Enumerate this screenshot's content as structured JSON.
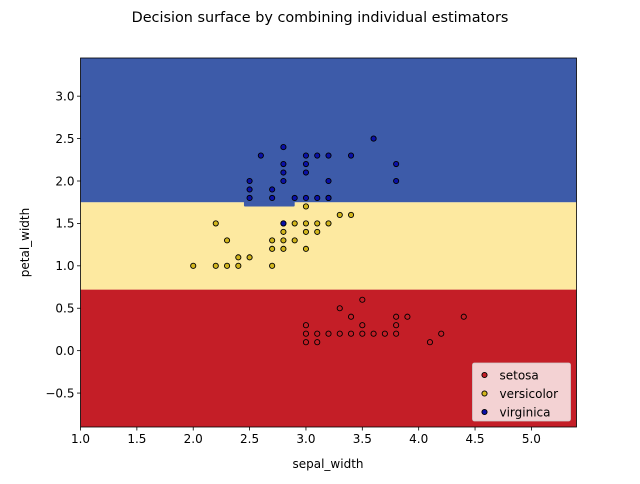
{
  "chart_data": {
    "type": "scatter",
    "title": "Decision surface by combining individual estimators",
    "xlabel": "sepal_width",
    "ylabel": "petal_width",
    "xlim": [
      1.0,
      5.4
    ],
    "ylim": [
      -0.9,
      3.45
    ],
    "xticks": [
      "1.0",
      "1.5",
      "2.0",
      "2.5",
      "3.0",
      "3.5",
      "4.0",
      "4.5",
      "5.0"
    ],
    "yticks": [
      "−0.5",
      "0.0",
      "0.5",
      "1.0",
      "1.5",
      "2.0",
      "2.5",
      "3.0"
    ],
    "grid": false,
    "legend_position": "lower-right",
    "regions": [
      {
        "class": "setosa",
        "color": "#c41e27",
        "y_range": [
          -0.9,
          0.72
        ]
      },
      {
        "class": "versicolor",
        "color": "#fde9a0",
        "y_range": [
          0.72,
          1.75
        ]
      },
      {
        "class": "virginica",
        "color": "#3d5ba9",
        "y_range": [
          1.75,
          3.45
        ],
        "notch": {
          "x_range": [
            2.45,
            2.9
          ],
          "y_min": 1.7
        }
      }
    ],
    "series": [
      {
        "name": "setosa",
        "color": "#c41e27",
        "points": [
          [
            3.0,
            0.1
          ],
          [
            3.1,
            0.1
          ],
          [
            3.0,
            0.2
          ],
          [
            3.0,
            0.3
          ],
          [
            3.1,
            0.2
          ],
          [
            3.2,
            0.2
          ],
          [
            3.3,
            0.2
          ],
          [
            3.4,
            0.2
          ],
          [
            3.5,
            0.2
          ],
          [
            3.6,
            0.2
          ],
          [
            3.7,
            0.2
          ],
          [
            3.8,
            0.2
          ],
          [
            3.3,
            0.5
          ],
          [
            3.4,
            0.4
          ],
          [
            3.5,
            0.3
          ],
          [
            3.5,
            0.6
          ],
          [
            3.8,
            0.3
          ],
          [
            3.8,
            0.4
          ],
          [
            3.9,
            0.4
          ],
          [
            4.1,
            0.1
          ],
          [
            4.2,
            0.2
          ],
          [
            4.4,
            0.4
          ]
        ]
      },
      {
        "name": "versicolor",
        "color": "#d2b61c",
        "points": [
          [
            2.0,
            1.0
          ],
          [
            2.2,
            1.0
          ],
          [
            2.3,
            1.0
          ],
          [
            2.4,
            1.0
          ],
          [
            2.2,
            1.5
          ],
          [
            2.3,
            1.3
          ],
          [
            2.4,
            1.1
          ],
          [
            2.5,
            1.1
          ],
          [
            2.7,
            1.0
          ],
          [
            2.7,
            1.2
          ],
          [
            2.7,
            1.3
          ],
          [
            2.8,
            1.2
          ],
          [
            2.8,
            1.3
          ],
          [
            2.8,
            1.4
          ],
          [
            2.8,
            1.5
          ],
          [
            2.9,
            1.3
          ],
          [
            2.9,
            1.5
          ],
          [
            3.0,
            1.2
          ],
          [
            3.0,
            1.4
          ],
          [
            3.0,
            1.5
          ],
          [
            3.0,
            1.7
          ],
          [
            3.1,
            1.4
          ],
          [
            3.1,
            1.5
          ],
          [
            3.2,
            1.5
          ],
          [
            3.2,
            1.8
          ],
          [
            3.3,
            1.6
          ],
          [
            3.4,
            1.6
          ]
        ]
      },
      {
        "name": "virginica",
        "color": "#0a10a8",
        "points": [
          [
            2.5,
            1.8
          ],
          [
            2.5,
            1.9
          ],
          [
            2.5,
            2.0
          ],
          [
            2.6,
            2.3
          ],
          [
            2.7,
            1.8
          ],
          [
            2.7,
            1.9
          ],
          [
            2.8,
            1.5
          ],
          [
            2.8,
            2.0
          ],
          [
            2.8,
            2.1
          ],
          [
            2.8,
            2.2
          ],
          [
            2.8,
            2.4
          ],
          [
            2.9,
            1.8
          ],
          [
            3.0,
            1.8
          ],
          [
            3.0,
            2.1
          ],
          [
            3.0,
            2.2
          ],
          [
            3.0,
            2.3
          ],
          [
            3.1,
            1.8
          ],
          [
            3.1,
            2.3
          ],
          [
            3.2,
            1.8
          ],
          [
            3.2,
            2.0
          ],
          [
            3.2,
            2.3
          ],
          [
            3.4,
            2.3
          ],
          [
            3.6,
            2.5
          ],
          [
            3.8,
            2.0
          ],
          [
            3.8,
            2.2
          ]
        ]
      }
    ]
  }
}
